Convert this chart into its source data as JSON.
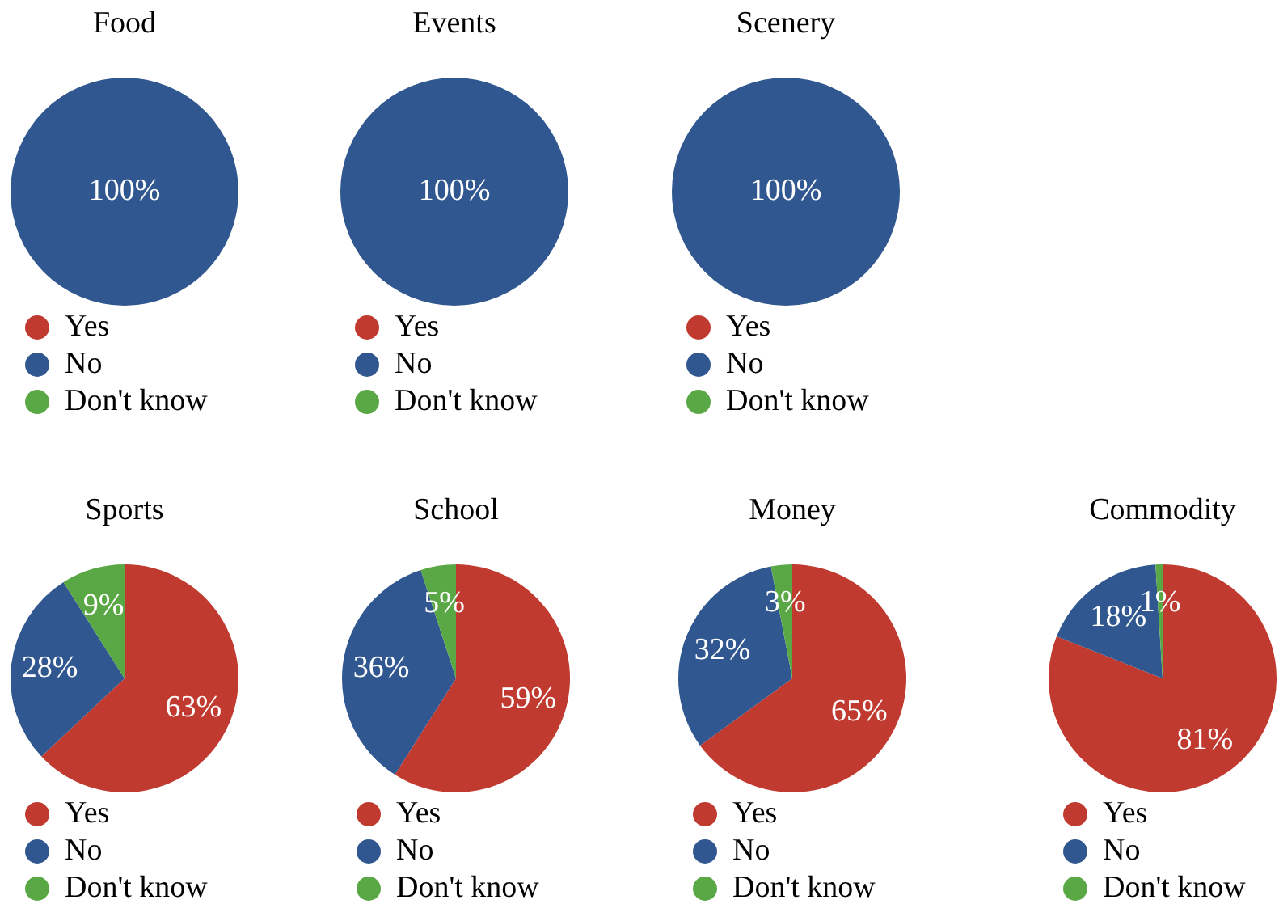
{
  "chart_data": [
    {
      "type": "pie",
      "title": "Food",
      "categories": [
        "Yes",
        "No",
        "Don't know"
      ],
      "values": [
        0,
        100,
        0
      ],
      "colors": [
        "#c13a30",
        "#30578f",
        "#5aa845"
      ],
      "value_labels": [
        null,
        "100%",
        null
      ],
      "legend": "bottom"
    },
    {
      "type": "pie",
      "title": "Events",
      "categories": [
        "Yes",
        "No",
        "Don't know"
      ],
      "values": [
        0,
        100,
        0
      ],
      "colors": [
        "#c13a30",
        "#30578f",
        "#5aa845"
      ],
      "value_labels": [
        null,
        "100%",
        null
      ],
      "legend": "bottom"
    },
    {
      "type": "pie",
      "title": "Scenery",
      "categories": [
        "Yes",
        "No",
        "Don't know"
      ],
      "values": [
        0,
        100,
        0
      ],
      "colors": [
        "#c13a30",
        "#30578f",
        "#5aa845"
      ],
      "value_labels": [
        null,
        "100%",
        null
      ],
      "legend": "bottom"
    },
    {
      "type": "pie",
      "title": "Sports",
      "categories": [
        "Yes",
        "No",
        "Don't know"
      ],
      "values": [
        63,
        28,
        9
      ],
      "colors": [
        "#c13a30",
        "#30578f",
        "#5aa845"
      ],
      "value_labels": [
        "63%",
        "28%",
        "9%"
      ],
      "legend": "bottom"
    },
    {
      "type": "pie",
      "title": "School",
      "categories": [
        "Yes",
        "No",
        "Don't know"
      ],
      "values": [
        59,
        36,
        5
      ],
      "colors": [
        "#c13a30",
        "#30578f",
        "#5aa845"
      ],
      "value_labels": [
        "59%",
        "36%",
        "5%"
      ],
      "legend": "bottom"
    },
    {
      "type": "pie",
      "title": "Money",
      "categories": [
        "Yes",
        "No",
        "Don't know"
      ],
      "values": [
        65,
        32,
        3
      ],
      "colors": [
        "#c13a30",
        "#30578f",
        "#5aa845"
      ],
      "value_labels": [
        "65%",
        "32%",
        "3%"
      ],
      "legend": "bottom"
    },
    {
      "type": "pie",
      "title": "Commodity",
      "categories": [
        "Yes",
        "No",
        "Don't know"
      ],
      "values": [
        81,
        18,
        1
      ],
      "colors": [
        "#c13a30",
        "#30578f",
        "#5aa845"
      ],
      "value_labels": [
        "81%",
        "18%",
        "1%"
      ],
      "legend": "bottom"
    }
  ]
}
